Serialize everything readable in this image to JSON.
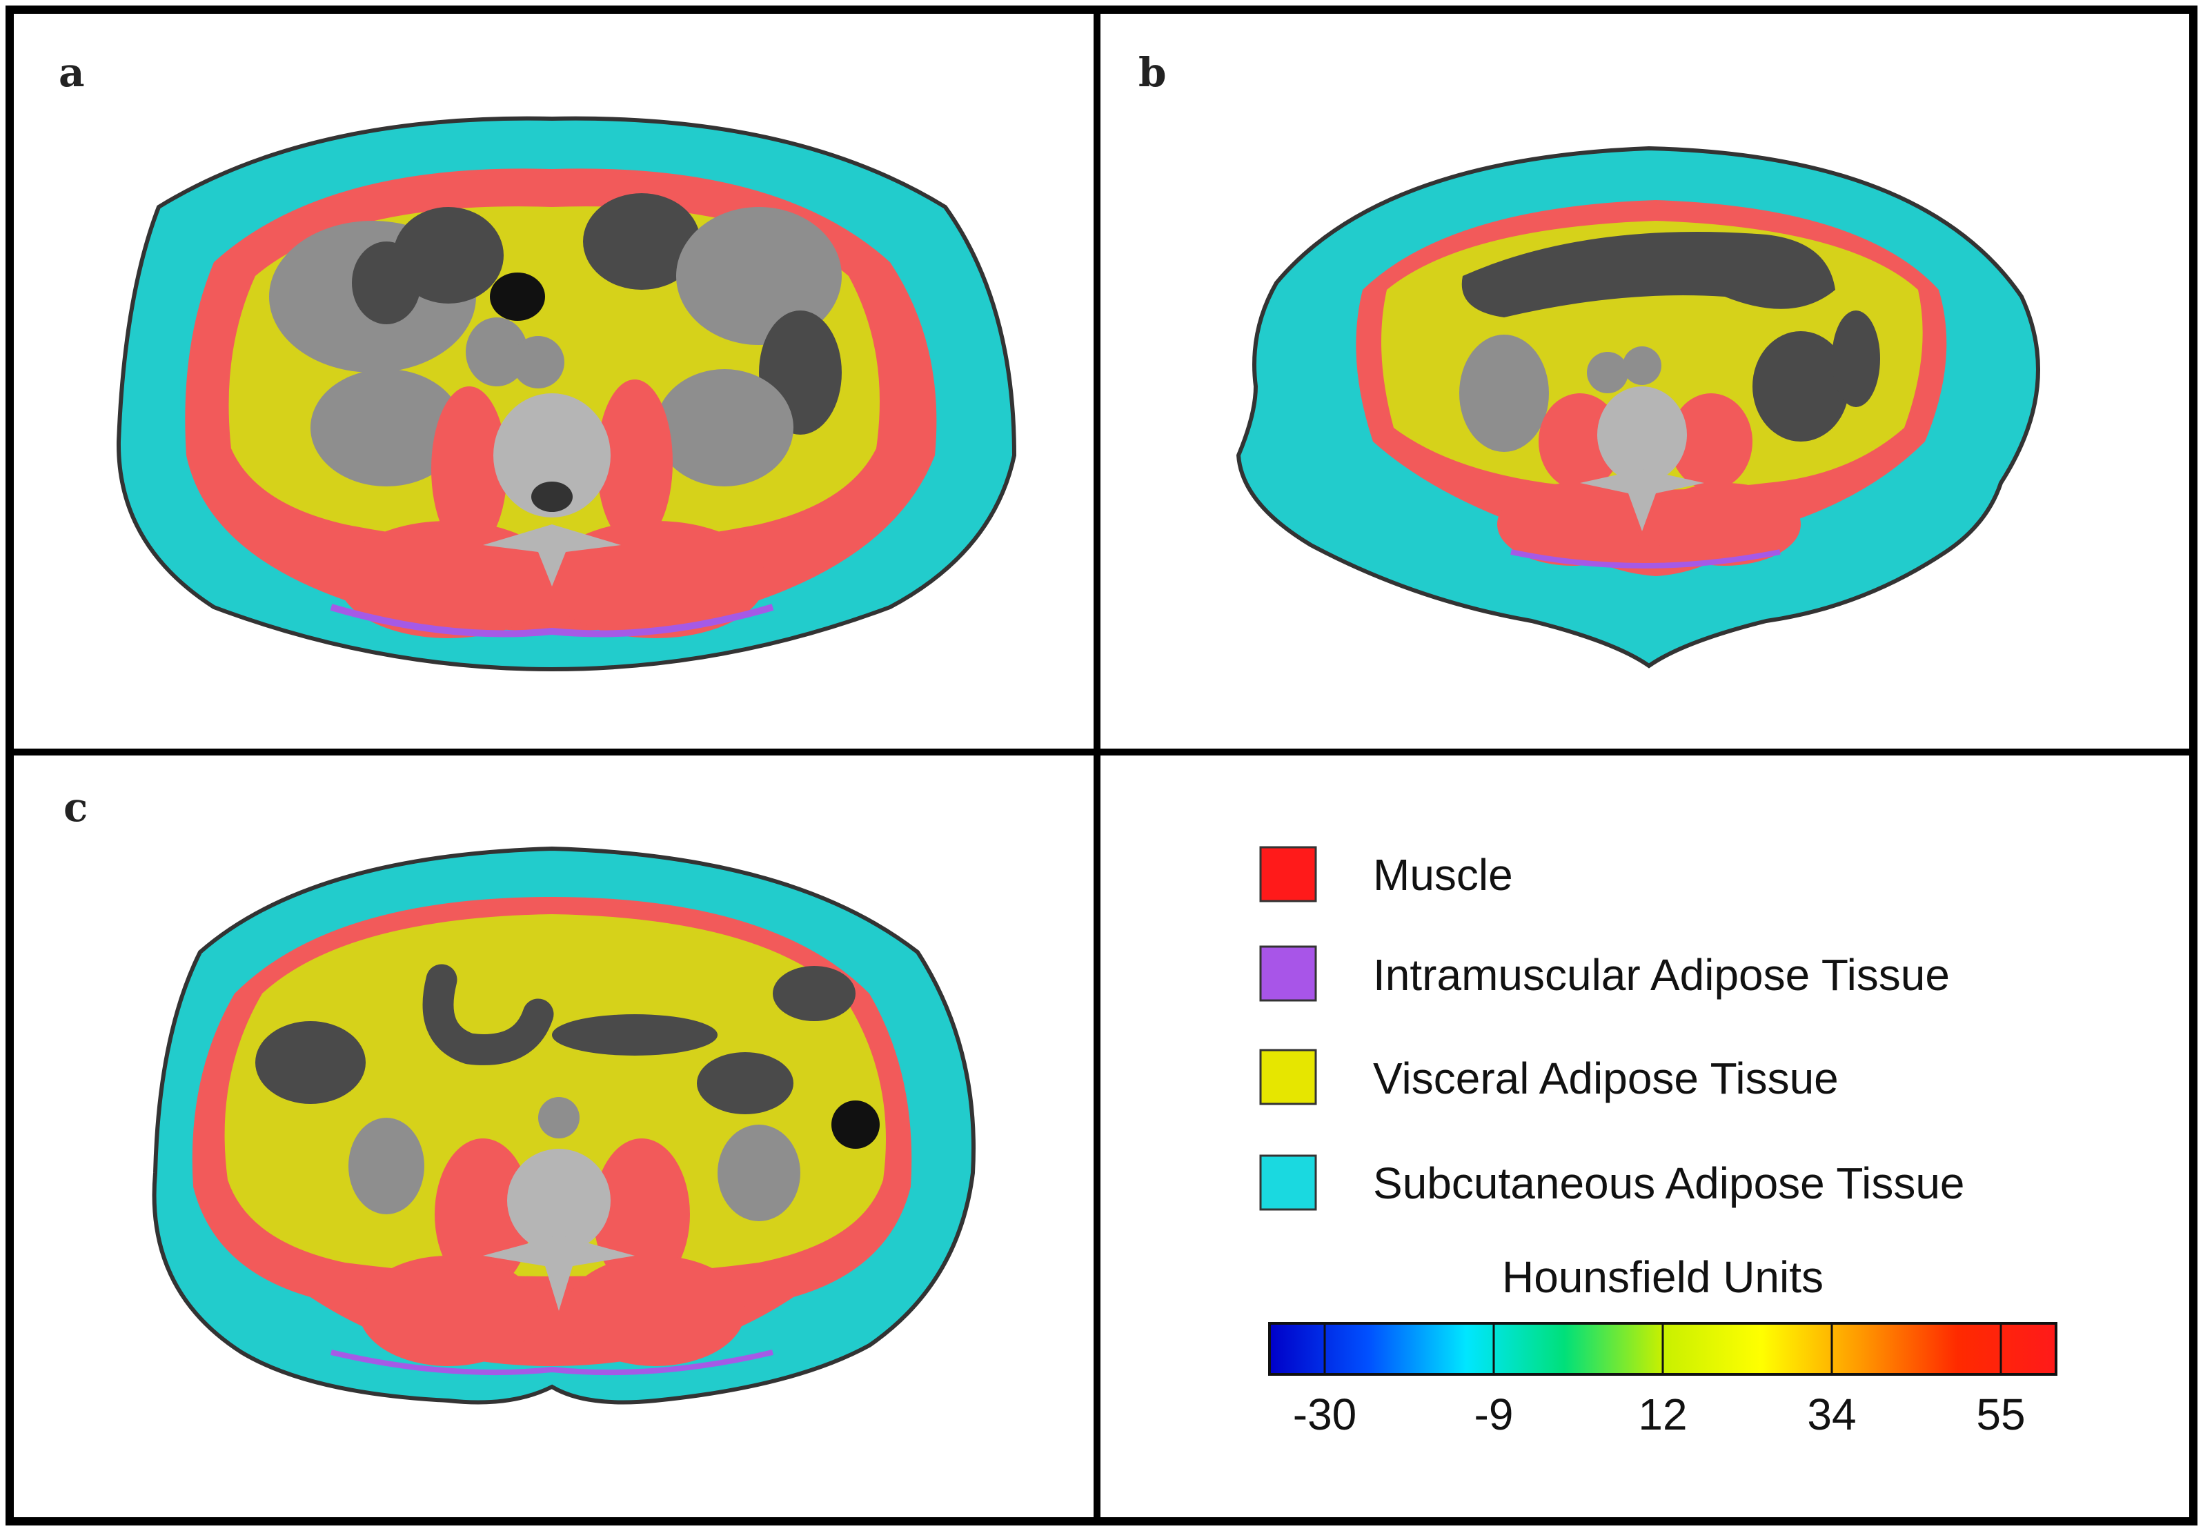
{
  "panels": [
    {
      "id": "a",
      "label": "a"
    },
    {
      "id": "b",
      "label": "b"
    },
    {
      "id": "c",
      "label": "c"
    }
  ],
  "legend": {
    "items": [
      {
        "label": "Muscle",
        "color": "#ff1a1a"
      },
      {
        "label": "Intramuscular Adipose Tissue",
        "color": "#a855e8"
      },
      {
        "label": "Visceral Adipose Tissue",
        "color": "#e6e600"
      },
      {
        "label": "Subcutaneous Adipose Tissue",
        "color": "#1ad9e0"
      }
    ]
  },
  "colorbar": {
    "title": "Hounsfield Units",
    "ticks": [
      "-30",
      "-9",
      "12",
      "34",
      "55"
    ],
    "stops": [
      "#0000c8",
      "#0050ff",
      "#00e6ff",
      "#00e07a",
      "#c8f000",
      "#ffff00",
      "#ff9a00",
      "#ff2a00",
      "#ff1a1a"
    ]
  },
  "colors": {
    "muscle": "#f25a5a",
    "imat": "#a55ae6",
    "vat": "#d6d21a",
    "sat": "#22cccc",
    "organ": "#8e8e8e",
    "bowel": "#4a4a4a",
    "bone": "#b5b5b5"
  }
}
